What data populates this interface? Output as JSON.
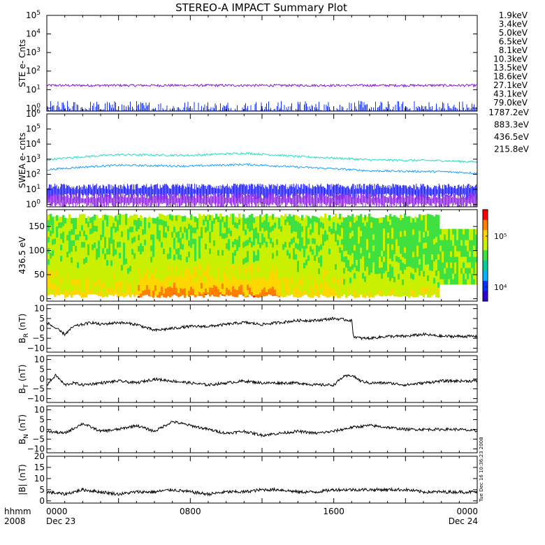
{
  "title": "STEREO-A IMPACT Summary Plot",
  "stamp": "Tue Dec 16 10:36:23 2008",
  "colorbar": {
    "top": "10⁵",
    "bottom": "10⁴",
    "colors": [
      "#ff0000",
      "#ff7f00",
      "#ffd700",
      "#c8f000",
      "#40e040",
      "#00d0a0",
      "#00b4ff",
      "#0030ff",
      "#3000d0"
    ]
  },
  "panels": [
    {
      "id": "ste",
      "ylabel": "STE e- Cnts",
      "yscale": "log",
      "ylim": [
        0.7,
        100000
      ],
      "ticks": [
        {
          "v": 1,
          "b": "10",
          "e": "0"
        },
        {
          "v": 10,
          "b": "10",
          "e": "1"
        },
        {
          "v": 100,
          "b": "10",
          "e": "2"
        },
        {
          "v": 1000,
          "b": "10",
          "e": "3"
        },
        {
          "v": 10000,
          "b": "10",
          "e": "4"
        },
        {
          "v": 100000,
          "b": "10",
          "e": "5"
        }
      ]
    },
    {
      "id": "swea",
      "ylabel": "SWEA e- cnts",
      "yscale": "log",
      "ylim": [
        0.7,
        1000000
      ],
      "ticks": [
        {
          "v": 1,
          "b": "10",
          "e": "0"
        },
        {
          "v": 10,
          "b": "10",
          "e": "1"
        },
        {
          "v": 100,
          "b": "10",
          "e": "2"
        },
        {
          "v": 1000,
          "b": "10",
          "e": "3"
        },
        {
          "v": 10000,
          "b": "10",
          "e": "4"
        },
        {
          "v": 100000,
          "b": "10",
          "e": "5"
        },
        {
          "v": 1000000,
          "b": "10",
          "e": "6"
        }
      ]
    },
    {
      "id": "pad",
      "ylabel": "436.5 eV",
      "yscale": "linear",
      "ylim": [
        -5,
        185
      ],
      "ticks": [
        {
          "v": 0,
          "b": "0"
        },
        {
          "v": 50,
          "b": "50"
        },
        {
          "v": 100,
          "b": "100"
        },
        {
          "v": 150,
          "b": "150"
        }
      ]
    },
    {
      "id": "br",
      "ylabel": "B",
      "ysub": "R",
      "yunit": "(nT)",
      "yscale": "linear",
      "ylim": [
        -12,
        12
      ],
      "ticks": [
        {
          "v": -10,
          "b": "−10"
        },
        {
          "v": -5,
          "b": "−5"
        },
        {
          "v": 0,
          "b": "0"
        },
        {
          "v": 5,
          "b": "5"
        },
        {
          "v": 10,
          "b": "10"
        }
      ]
    },
    {
      "id": "bt",
      "ylabel": "B",
      "ysub": "T",
      "yunit": "(nT)",
      "yscale": "linear",
      "ylim": [
        -12,
        12
      ],
      "ticks": [
        {
          "v": -10,
          "b": "−10"
        },
        {
          "v": -5,
          "b": "−5"
        },
        {
          "v": 0,
          "b": "0"
        },
        {
          "v": 5,
          "b": "5"
        },
        {
          "v": 10,
          "b": "10"
        }
      ]
    },
    {
      "id": "bn",
      "ylabel": "B",
      "ysub": "N",
      "yunit": "(nT)",
      "yscale": "linear",
      "ylim": [
        -12,
        12
      ],
      "ticks": [
        {
          "v": -10,
          "b": "−10"
        },
        {
          "v": -5,
          "b": "−5"
        },
        {
          "v": 0,
          "b": "0"
        },
        {
          "v": 5,
          "b": "5"
        },
        {
          "v": 10,
          "b": "10"
        }
      ]
    },
    {
      "id": "b",
      "ylabel": "|B|",
      "yunit": "(nT)",
      "yscale": "linear",
      "ylim": [
        -1,
        20
      ],
      "ticks": [
        {
          "v": 0,
          "b": "0"
        },
        {
          "v": 5,
          "b": "5"
        },
        {
          "v": 10,
          "b": "10"
        },
        {
          "v": 15,
          "b": "15"
        },
        {
          "v": 20,
          "b": "20"
        }
      ]
    }
  ],
  "xaxis": {
    "unit_label": "hhmm",
    "year_label": "2008",
    "range_hours": [
      0,
      24
    ],
    "major": [
      {
        "h": 0,
        "label": "0000",
        "sub": "Dec 23"
      },
      {
        "h": 8,
        "label": "0800",
        "sub": ""
      },
      {
        "h": 16,
        "label": "1600",
        "sub": ""
      },
      {
        "h": 24,
        "label": "0000",
        "sub": "Dec 24"
      }
    ]
  },
  "chart_data": {
    "type": "line",
    "title": "STEREO-A IMPACT Summary Plot",
    "x_unit": "hhmm (2008 Dec 23 0000 to Dec 24 0000)",
    "ste_legend": [
      {
        "name": "1.9keV",
        "color": "#8a1be0"
      },
      {
        "name": "3.4keV",
        "color": "#4b0ccc"
      },
      {
        "name": "5.0keV",
        "color": "#1030ff"
      },
      {
        "name": "6.5keV",
        "color": "#1aa0ff"
      },
      {
        "name": "8.1keV",
        "color": "#00c8c8"
      },
      {
        "name": "10.3keV",
        "color": "#00cc66"
      },
      {
        "name": "13.5keV",
        "color": "#22dd00"
      },
      {
        "name": "18.6keV",
        "color": "#88dd00"
      },
      {
        "name": "27.1keV",
        "color": "#e6d200"
      },
      {
        "name": "43.1keV",
        "color": "#ff8c00"
      },
      {
        "name": "79.0keV",
        "color": "#ff2020"
      }
    ],
    "swea_legend": [
      {
        "name": "1787.2eV",
        "color": "#8a1be0"
      },
      {
        "name": "883.3eV",
        "color": "#1414ff"
      },
      {
        "name": "436.5eV",
        "color": "#1aa0ff"
      },
      {
        "name": "215.8eV",
        "color": "#20e0c0"
      }
    ],
    "ste_series": [
      {
        "name": "1.9keV",
        "level": 17
      },
      {
        "name": "5.0keV",
        "level": 1
      }
    ],
    "swea_series": [
      {
        "name": "215.8eV",
        "x": [
          0,
          4,
          8,
          11,
          14,
          18,
          22,
          24
        ],
        "y": [
          900,
          2000,
          1800,
          2500,
          1500,
          900,
          800,
          650
        ]
      },
      {
        "name": "436.5eV",
        "x": [
          0,
          4,
          8,
          11,
          14,
          18,
          22,
          24
        ],
        "y": [
          200,
          400,
          350,
          450,
          300,
          170,
          150,
          120
        ]
      },
      {
        "name": "883.3eV",
        "level": 12
      },
      {
        "name": "1787.2eV",
        "level": 3
      }
    ],
    "br": {
      "x": [
        0,
        0.5,
        1,
        1.5,
        2,
        2.5,
        3,
        4,
        5,
        6,
        7,
        8,
        9,
        10,
        11,
        12,
        13,
        14,
        15,
        16,
        17,
        17.1,
        17.5,
        18,
        19,
        20,
        21,
        22,
        23,
        24
      ],
      "y": [
        3,
        0,
        -3,
        1,
        2,
        3,
        2,
        3,
        2,
        -1,
        0,
        1,
        1,
        2,
        3,
        2,
        3,
        4,
        4,
        5,
        4,
        -4,
        -5,
        -5,
        -4,
        -4,
        -3,
        -4,
        -4,
        -4
      ]
    },
    "bt": {
      "x": [
        0,
        0.5,
        1,
        1.5,
        2,
        3,
        4,
        5,
        6,
        7,
        8,
        9,
        10,
        11,
        12,
        13,
        14,
        15,
        16,
        16.5,
        17,
        17.5,
        18,
        19,
        20,
        21,
        22,
        23,
        24
      ],
      "y": [
        -3,
        2,
        -3,
        -2,
        -3,
        -2,
        -1,
        -2,
        0,
        -1,
        -2,
        -3,
        -2,
        -1,
        -2,
        -2,
        -2,
        -3,
        -3,
        1,
        2,
        -1,
        -2,
        -2,
        -3,
        -2,
        -1,
        -1,
        -1
      ]
    },
    "bn": {
      "x": [
        0,
        1,
        2,
        3,
        4,
        5,
        6,
        7,
        8,
        9,
        10,
        11,
        12,
        13,
        14,
        15,
        16,
        17,
        18,
        19,
        20,
        21,
        22,
        23,
        24
      ],
      "y": [
        -1,
        -2,
        3,
        -1,
        0,
        2,
        -1,
        4,
        2,
        0,
        -2,
        -1,
        -3,
        -2,
        -1,
        -2,
        -1,
        1,
        2,
        1,
        0,
        0,
        0,
        0,
        -1
      ]
    },
    "b": {
      "x": [
        0,
        1,
        2,
        3,
        4,
        5,
        6,
        7,
        8,
        9,
        10,
        11,
        12,
        13,
        14,
        15,
        16,
        17,
        18,
        19,
        20,
        21,
        22,
        23,
        24
      ],
      "y": [
        4,
        3,
        5,
        4,
        3,
        4,
        4,
        5,
        4,
        3,
        4,
        4,
        5,
        5,
        4,
        4,
        5,
        5,
        5,
        5,
        5,
        4,
        4,
        4,
        4
      ]
    },
    "pitch_angle": {
      "ylabel": "436.5 eV",
      "ylim": [
        0,
        180
      ],
      "zscale": "log",
      "zticks": [
        "10⁴",
        "10⁵"
      ],
      "coverage_hours": [
        {
          "start": 0,
          "end": 21.8,
          "ymin": 10,
          "ymax": 170
        },
        {
          "start": 21.8,
          "end": 24,
          "ymin": 30,
          "ymax": 145
        }
      ]
    }
  }
}
